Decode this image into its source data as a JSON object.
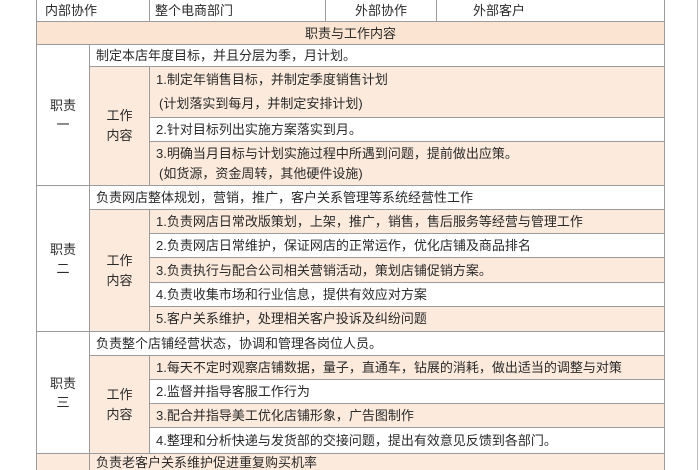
{
  "colors": {
    "peach_band": "#fbe5d2",
    "peach_row": "#fcebdd",
    "row_white": "#ffffff",
    "border_gray": "#9b9b9b",
    "text": "#2a2a2a"
  },
  "top_row": {
    "cells": [
      "内部协作",
      "整个电商部门",
      "外部协作",
      "外部客户"
    ]
  },
  "section_header": "职责与工作内容",
  "work_label": {
    "line1": "工作",
    "line2": "内容"
  },
  "blocks": [
    {
      "label_line1": "职责",
      "label_line2": "一",
      "intro": "制定本店年度目标，并且分层为季，月计划。",
      "items": [
        {
          "line1": "1.制定年销售目标，并制定季度销售计划",
          "line2": "(计划落实到每月，并制定安排计划)"
        },
        {
          "line1": "2.针对目标列出实施方案落实到月。"
        },
        {
          "line1": "3.明确当月目标与计划实施过程中所遇到问题，提前做出应策。",
          "line2": "(如货源，资金周转，其他硬件设施)"
        }
      ]
    },
    {
      "label_line1": "职责",
      "label_line2": "二",
      "intro": "负责网店整体规划，营销，推广，客户关系管理等系统经营性工作",
      "items": [
        {
          "line1": "1.负责网店日常改版策划，上架，推广，销售，售后服务等经营与管理工作"
        },
        {
          "line1": "2.负责网店日常维护，保证网店的正常运作，优化店铺及商品排名"
        },
        {
          "line1": "3.负责执行与配合公司相关营销活动，策划店铺促销方案。"
        },
        {
          "line1": "4.负责收集市场和行业信息，提供有效应对方案"
        },
        {
          "line1": "5.客户关系维护，处理相关客户投诉及纠纷问题"
        }
      ]
    },
    {
      "label_line1": "职责",
      "label_line2": "三",
      "intro": "负责整个店铺经营状态，协调和管理各岗位人员。",
      "items": [
        {
          "line1": "1.每天不定时观察店铺数据，量子，直通车，钻展的消耗，做出适当的调整与对策"
        },
        {
          "line1": "2.监督并指导客服工作行为"
        },
        {
          "line1": "3.配合并指导美工优化店铺形象，广告图制作"
        },
        {
          "line1": "4.整理和分析快递与发货部的交接问题，提出有效意见反馈到各部门。"
        }
      ]
    }
  ],
  "footer": {
    "text": "负责老客户关系维护促进重复购买机率"
  }
}
